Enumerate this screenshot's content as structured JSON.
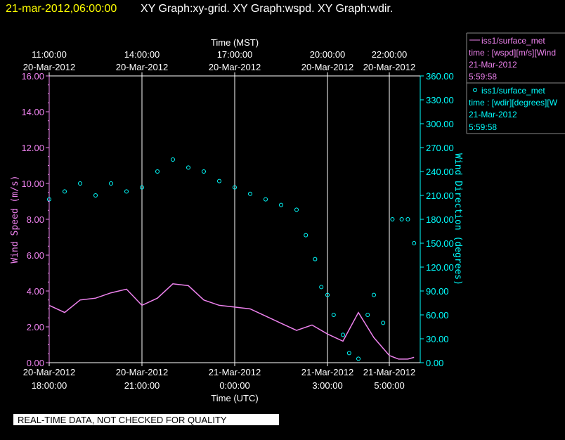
{
  "header": {
    "timestamp": "21-mar-2012,06:00:00",
    "graphs": "XY Graph:xy-grid.  XY Graph:wspd.  XY Graph:wdir."
  },
  "footer": {
    "disclaimer": "REAL-TIME DATA, NOT CHECKED FOR QUALITY"
  },
  "legend": [
    {
      "name": "iss1/surface_met",
      "line1": "time : [wspd][m/s][Wind",
      "line2": "21-Mar-2012",
      "line3": "5:59:58",
      "color": "#ee82ee"
    },
    {
      "name": "iss1/surface_met",
      "line1": "time : [wdir][degrees][W",
      "line2": "21-Mar-2012",
      "line3": "5:59:58",
      "color": "#00ffff"
    }
  ],
  "colors": {
    "wspd": "#ee82ee",
    "wdir": "#00ffff",
    "grid": "#ffffff",
    "text": "#ffffff",
    "header": "#ffff00"
  },
  "chart_data": {
    "type": "line",
    "x_top": {
      "title": "Time (MST)",
      "ticks": [
        {
          "t": 0,
          "time": "11:00:00",
          "date": "20-Mar-2012"
        },
        {
          "t": 3,
          "time": "14:00:00",
          "date": "20-Mar-2012"
        },
        {
          "t": 6,
          "time": "17:00:00",
          "date": "20-Mar-2012"
        },
        {
          "t": 9,
          "time": "20:00:00",
          "date": "20-Mar-2012"
        },
        {
          "t": 11,
          "time": "22:00:00",
          "date": "20-Mar-2012"
        }
      ]
    },
    "x_bottom": {
      "title": "Time (UTC)",
      "ticks": [
        {
          "t": 0,
          "date": "20-Mar-2012",
          "time": "18:00:00"
        },
        {
          "t": 3,
          "date": "20-Mar-2012",
          "time": "21:00:00"
        },
        {
          "t": 6,
          "date": "21-Mar-2012",
          "time": "0:00:00"
        },
        {
          "t": 9,
          "date": "21-Mar-2012",
          "time": "3:00:00"
        },
        {
          "t": 11,
          "date": "21-Mar-2012",
          "time": "5:00:00"
        }
      ]
    },
    "xlim": [
      0,
      12
    ],
    "y_left": {
      "label": "Wind Speed (m/s)",
      "lim": [
        0,
        16
      ],
      "ticks": [
        "0.00",
        "2.00",
        "4.00",
        "6.00",
        "8.00",
        "10.00",
        "12.00",
        "14.00",
        "16.00"
      ]
    },
    "y_right": {
      "label": "Wind Direction (degrees)",
      "lim": [
        0,
        360
      ],
      "ticks": [
        "0.00",
        "30.00",
        "60.00",
        "90.00",
        "120.00",
        "150.00",
        "180.00",
        "210.00",
        "240.00",
        "270.00",
        "300.00",
        "330.00",
        "360.00"
      ]
    },
    "series": [
      {
        "name": "wspd",
        "axis": "left",
        "style": "line",
        "x": [
          0,
          0.5,
          1,
          1.5,
          2,
          2.5,
          3,
          3.5,
          4,
          4.5,
          5,
          5.5,
          6,
          6.5,
          7,
          7.5,
          8,
          8.5,
          9,
          9.5,
          10,
          10.5,
          11,
          11.3,
          11.6,
          11.8
        ],
        "values": [
          3.2,
          2.8,
          3.5,
          3.6,
          3.9,
          4.1,
          3.2,
          3.6,
          4.4,
          4.3,
          3.5,
          3.2,
          3.1,
          3.0,
          2.6,
          2.2,
          1.8,
          2.1,
          1.6,
          1.2,
          2.8,
          1.4,
          0.4,
          0.2,
          0.2,
          0.3
        ]
      },
      {
        "name": "wdir",
        "axis": "right",
        "style": "scatter",
        "x": [
          0,
          0.5,
          1,
          1.5,
          2,
          2.5,
          3,
          3.5,
          4,
          4.5,
          5,
          5.5,
          6,
          6.5,
          7,
          7.5,
          8,
          8.3,
          8.6,
          8.8,
          9,
          9.2,
          9.5,
          9.7,
          10,
          10.3,
          10.5,
          10.8,
          11.1,
          11.4,
          11.6,
          11.8
        ],
        "values": [
          205,
          215,
          225,
          210,
          225,
          215,
          220,
          240,
          255,
          245,
          240,
          228,
          220,
          212,
          205,
          198,
          192,
          160,
          130,
          95,
          85,
          60,
          35,
          12,
          5,
          60,
          85,
          50,
          180,
          180,
          180,
          150
        ]
      }
    ]
  }
}
